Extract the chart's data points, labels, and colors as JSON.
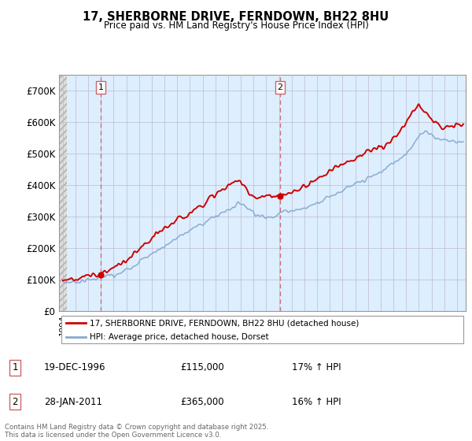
{
  "title": "17, SHERBORNE DRIVE, FERNDOWN, BH22 8HU",
  "subtitle": "Price paid vs. HM Land Registry's House Price Index (HPI)",
  "ylim": [
    0,
    750000
  ],
  "yticks": [
    0,
    100000,
    200000,
    300000,
    400000,
    500000,
    600000,
    700000
  ],
  "ytick_labels": [
    "£0",
    "£100K",
    "£200K",
    "£300K",
    "£400K",
    "£500K",
    "£600K",
    "£700K"
  ],
  "purchases": [
    {
      "date_num": 1996.97,
      "price": 115000,
      "label": "1"
    },
    {
      "date_num": 2011.08,
      "price": 365000,
      "label": "2"
    }
  ],
  "purchase_annotations": [
    {
      "label": "1",
      "date": "19-DEC-1996",
      "price": "£115,000",
      "pct": "17% ↑ HPI"
    },
    {
      "label": "2",
      "date": "28-JAN-2011",
      "price": "£365,000",
      "pct": "16% ↑ HPI"
    }
  ],
  "legend_line1": "17, SHERBORNE DRIVE, FERNDOWN, BH22 8HU (detached house)",
  "legend_line2": "HPI: Average price, detached house, Dorset",
  "footer": "Contains HM Land Registry data © Crown copyright and database right 2025.\nThis data is licensed under the Open Government Licence v3.0.",
  "line_color_red": "#cc0000",
  "line_color_blue": "#88aacc",
  "bg_blue": "#ddeeff",
  "grid_color": "#cccccc",
  "vline_color": "#cc6666",
  "hatch_color": "#cccccc"
}
